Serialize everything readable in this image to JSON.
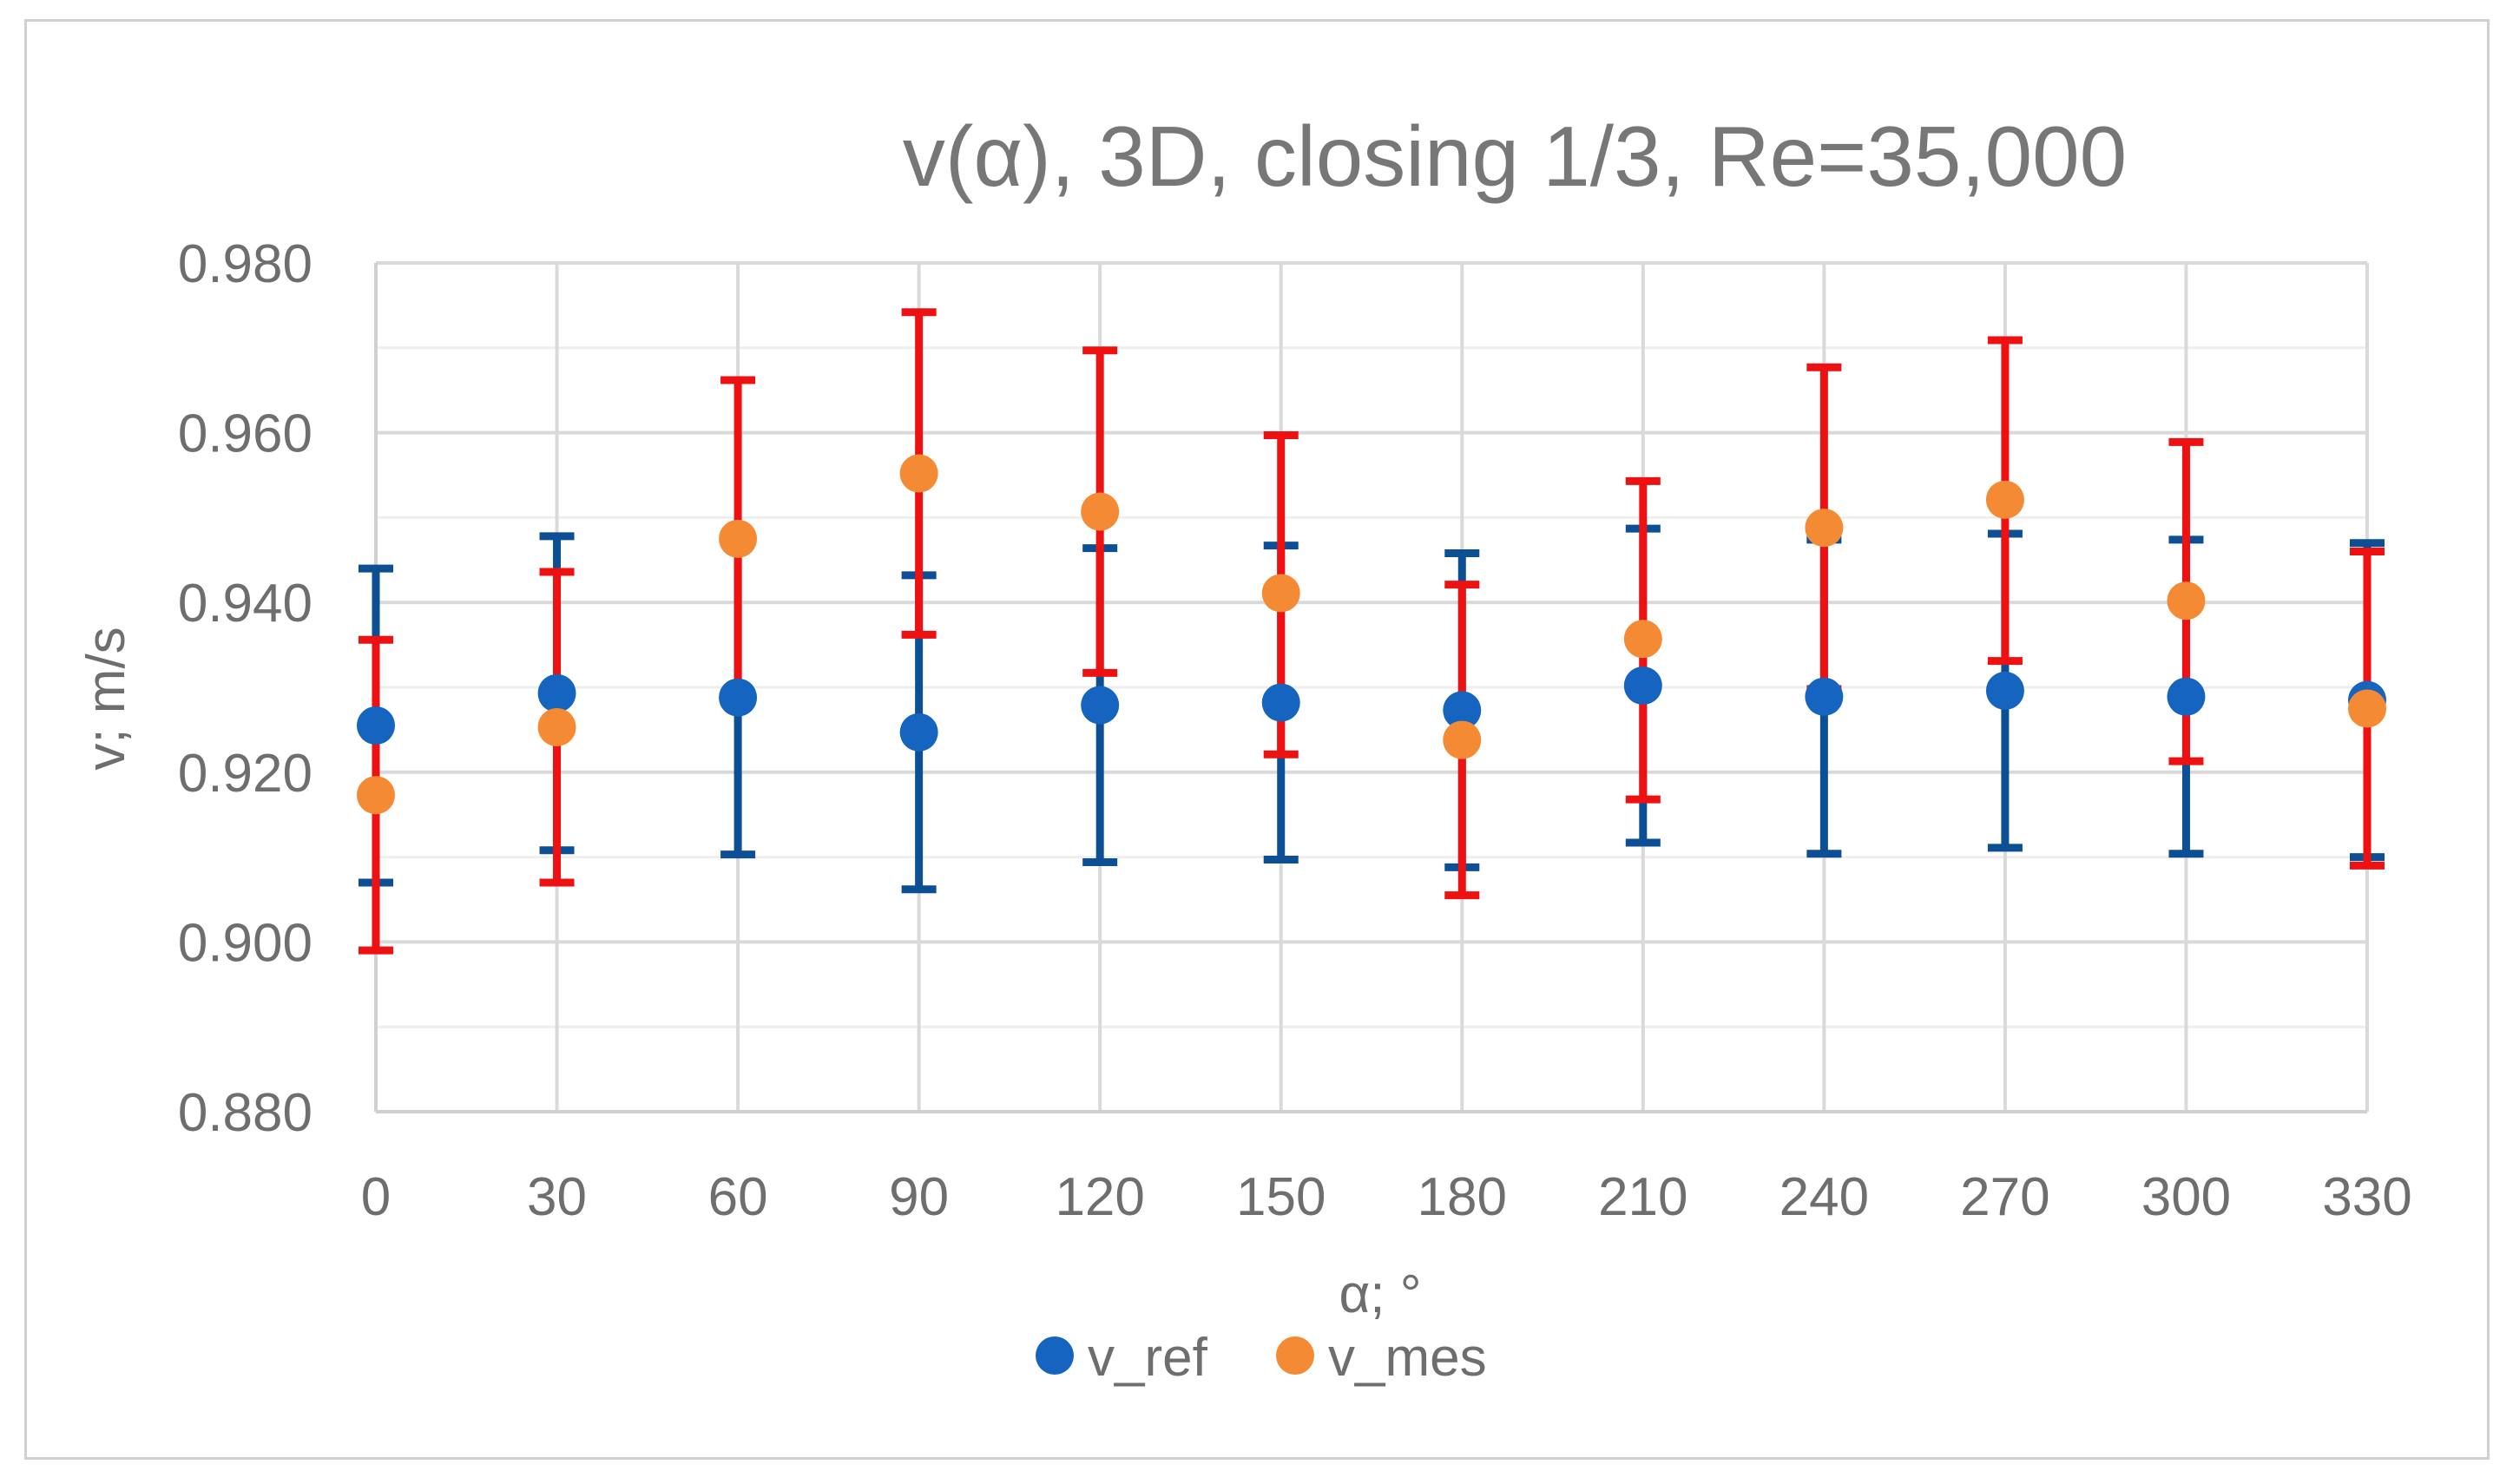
{
  "chart_data": {
    "type": "scatter",
    "title": "v(α), 3D, closing 1/3, Re=35,000",
    "xlabel": "α; °",
    "ylabel": "v; m/s",
    "x": [
      0,
      30,
      60,
      90,
      120,
      150,
      180,
      210,
      240,
      270,
      300,
      330
    ],
    "x_tick_labels": [
      "0",
      "30",
      "60",
      "90",
      "120",
      "150",
      "180",
      "210",
      "240",
      "270",
      "300",
      "330"
    ],
    "ylim": [
      0.88,
      0.98
    ],
    "y_tick_labels": [
      "0.880",
      "0.900",
      "0.920",
      "0.940",
      "0.960",
      "0.980"
    ],
    "y_ticks": [
      0.88,
      0.9,
      0.92,
      0.94,
      0.96,
      0.98
    ],
    "grid": true,
    "legend_position": "bottom",
    "series": [
      {
        "name": "v_ref",
        "color": "#1565c0",
        "error_color": "#0d4f94",
        "values": [
          0.9255,
          0.9293,
          0.9288,
          0.9247,
          0.9279,
          0.9282,
          0.9273,
          0.9302,
          0.9289,
          0.9296,
          0.9289,
          0.9285
        ],
        "error_low": [
          0.907,
          0.9108,
          0.9103,
          0.9062,
          0.9094,
          0.9097,
          0.9088,
          0.9117,
          0.9104,
          0.9111,
          0.9104,
          0.91
        ],
        "error_high": [
          0.944,
          0.9478,
          0.9473,
          0.9432,
          0.9464,
          0.9467,
          0.9458,
          0.9487,
          0.9474,
          0.9481,
          0.9474,
          0.947
        ]
      },
      {
        "name": "v_mes",
        "color": "#f58a34",
        "error_color": "#ee1111",
        "values": [
          0.9173,
          0.9253,
          0.9475,
          0.9552,
          0.9507,
          0.9411,
          0.9238,
          0.9357,
          0.9488,
          0.9521,
          0.9402,
          0.9275
        ],
        "error_low": [
          0.899,
          0.907,
          0.9292,
          0.9362,
          0.9317,
          0.9221,
          0.9055,
          0.9168,
          0.9298,
          0.9331,
          0.9213,
          0.909
        ],
        "error_high": [
          0.9356,
          0.9436,
          0.9662,
          0.9742,
          0.9697,
          0.9597,
          0.9421,
          0.9543,
          0.9677,
          0.9709,
          0.9589,
          0.946
        ]
      }
    ]
  }
}
